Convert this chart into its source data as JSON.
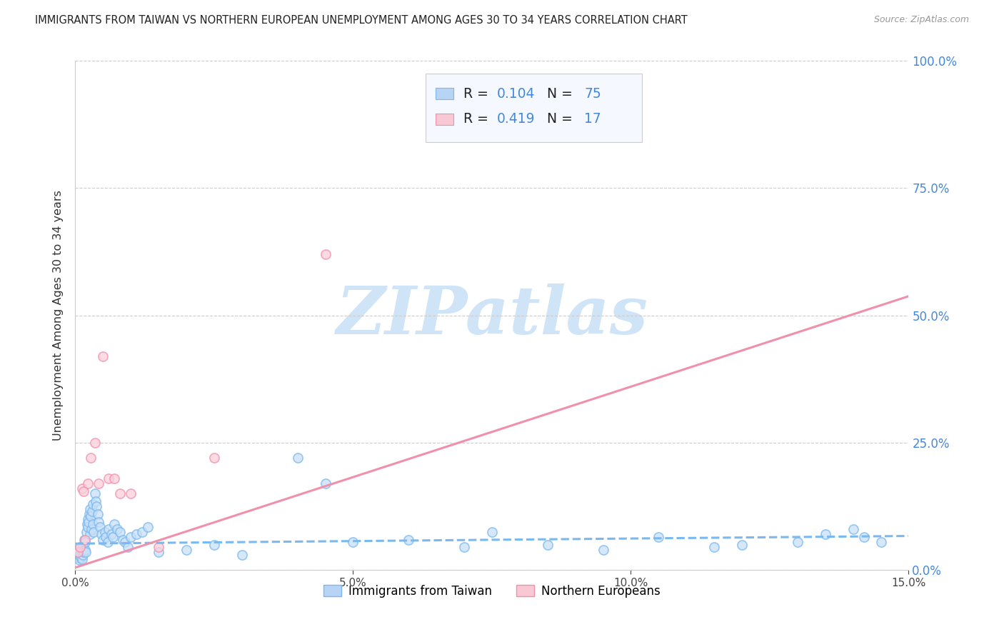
{
  "title": "IMMIGRANTS FROM TAIWAN VS NORTHERN EUROPEAN UNEMPLOYMENT AMONG AGES 30 TO 34 YEARS CORRELATION CHART",
  "source": "Source: ZipAtlas.com",
  "ylabel": "Unemployment Among Ages 30 to 34 years",
  "xlim": [
    0.0,
    15.0
  ],
  "ylim": [
    0.0,
    100.0
  ],
  "xtick_vals": [
    0.0,
    5.0,
    10.0,
    15.0
  ],
  "ytick_vals": [
    0.0,
    25.0,
    50.0,
    75.0,
    100.0
  ],
  "blue_R": 0.104,
  "blue_N": 75,
  "pink_R": 0.419,
  "pink_N": 17,
  "blue_color": "#7ab8f0",
  "pink_color": "#f090aa",
  "blue_label": "Immigrants from Taiwan",
  "pink_label": "Northern Europeans",
  "right_axis_color": "#4488dd",
  "watermark_color": "#d0e4f8",
  "background_color": "#ffffff",
  "grid_color": "#cccccc",
  "title_fontsize": 10.5,
  "legend_bg": "#f5f8ff",
  "legend_edge": "#cccccc",
  "blue_trend_slope": 0.1,
  "blue_trend_intercept": 5.2,
  "pink_trend_slope": 3.55,
  "pink_trend_intercept": 0.5,
  "blue_scatter_x": [
    0.03,
    0.04,
    0.05,
    0.06,
    0.07,
    0.08,
    0.09,
    0.1,
    0.11,
    0.12,
    0.13,
    0.14,
    0.15,
    0.16,
    0.17,
    0.18,
    0.19,
    0.2,
    0.21,
    0.22,
    0.23,
    0.24,
    0.25,
    0.26,
    0.27,
    0.28,
    0.29,
    0.3,
    0.31,
    0.32,
    0.33,
    0.35,
    0.37,
    0.38,
    0.4,
    0.42,
    0.45,
    0.47,
    0.5,
    0.53,
    0.55,
    0.58,
    0.6,
    0.65,
    0.68,
    0.7,
    0.75,
    0.8,
    0.85,
    0.9,
    0.95,
    1.0,
    1.1,
    1.2,
    1.3,
    1.5,
    2.0,
    2.5,
    3.0,
    4.0,
    4.5,
    5.0,
    6.0,
    7.0,
    7.5,
    8.5,
    9.5,
    10.5,
    11.5,
    12.0,
    13.0,
    13.5,
    14.0,
    14.2,
    14.5
  ],
  "blue_scatter_y": [
    4.0,
    3.0,
    2.5,
    3.5,
    2.0,
    2.8,
    3.2,
    2.5,
    3.8,
    2.2,
    3.0,
    4.5,
    3.5,
    6.0,
    4.0,
    5.5,
    3.5,
    7.5,
    9.0,
    10.0,
    8.5,
    9.5,
    11.0,
    7.0,
    12.0,
    10.5,
    8.0,
    11.5,
    9.0,
    13.0,
    7.5,
    15.0,
    13.5,
    12.5,
    11.0,
    9.5,
    8.5,
    7.0,
    6.0,
    7.5,
    6.5,
    5.5,
    8.0,
    7.0,
    6.5,
    9.0,
    8.0,
    7.5,
    6.0,
    5.5,
    4.5,
    6.5,
    7.0,
    7.5,
    8.5,
    3.5,
    4.0,
    5.0,
    3.0,
    22.0,
    17.0,
    5.5,
    6.0,
    4.5,
    7.5,
    5.0,
    4.0,
    6.5,
    4.5,
    5.0,
    5.5,
    7.0,
    8.0,
    6.5,
    5.5
  ],
  "pink_scatter_x": [
    0.05,
    0.08,
    0.12,
    0.15,
    0.18,
    0.22,
    0.28,
    0.35,
    0.42,
    0.5,
    0.6,
    0.7,
    0.8,
    1.0,
    1.5,
    2.5,
    4.5
  ],
  "pink_scatter_y": [
    3.5,
    4.5,
    16.0,
    15.5,
    6.0,
    17.0,
    22.0,
    25.0,
    17.0,
    42.0,
    18.0,
    18.0,
    15.0,
    15.0,
    4.5,
    22.0,
    62.0
  ]
}
